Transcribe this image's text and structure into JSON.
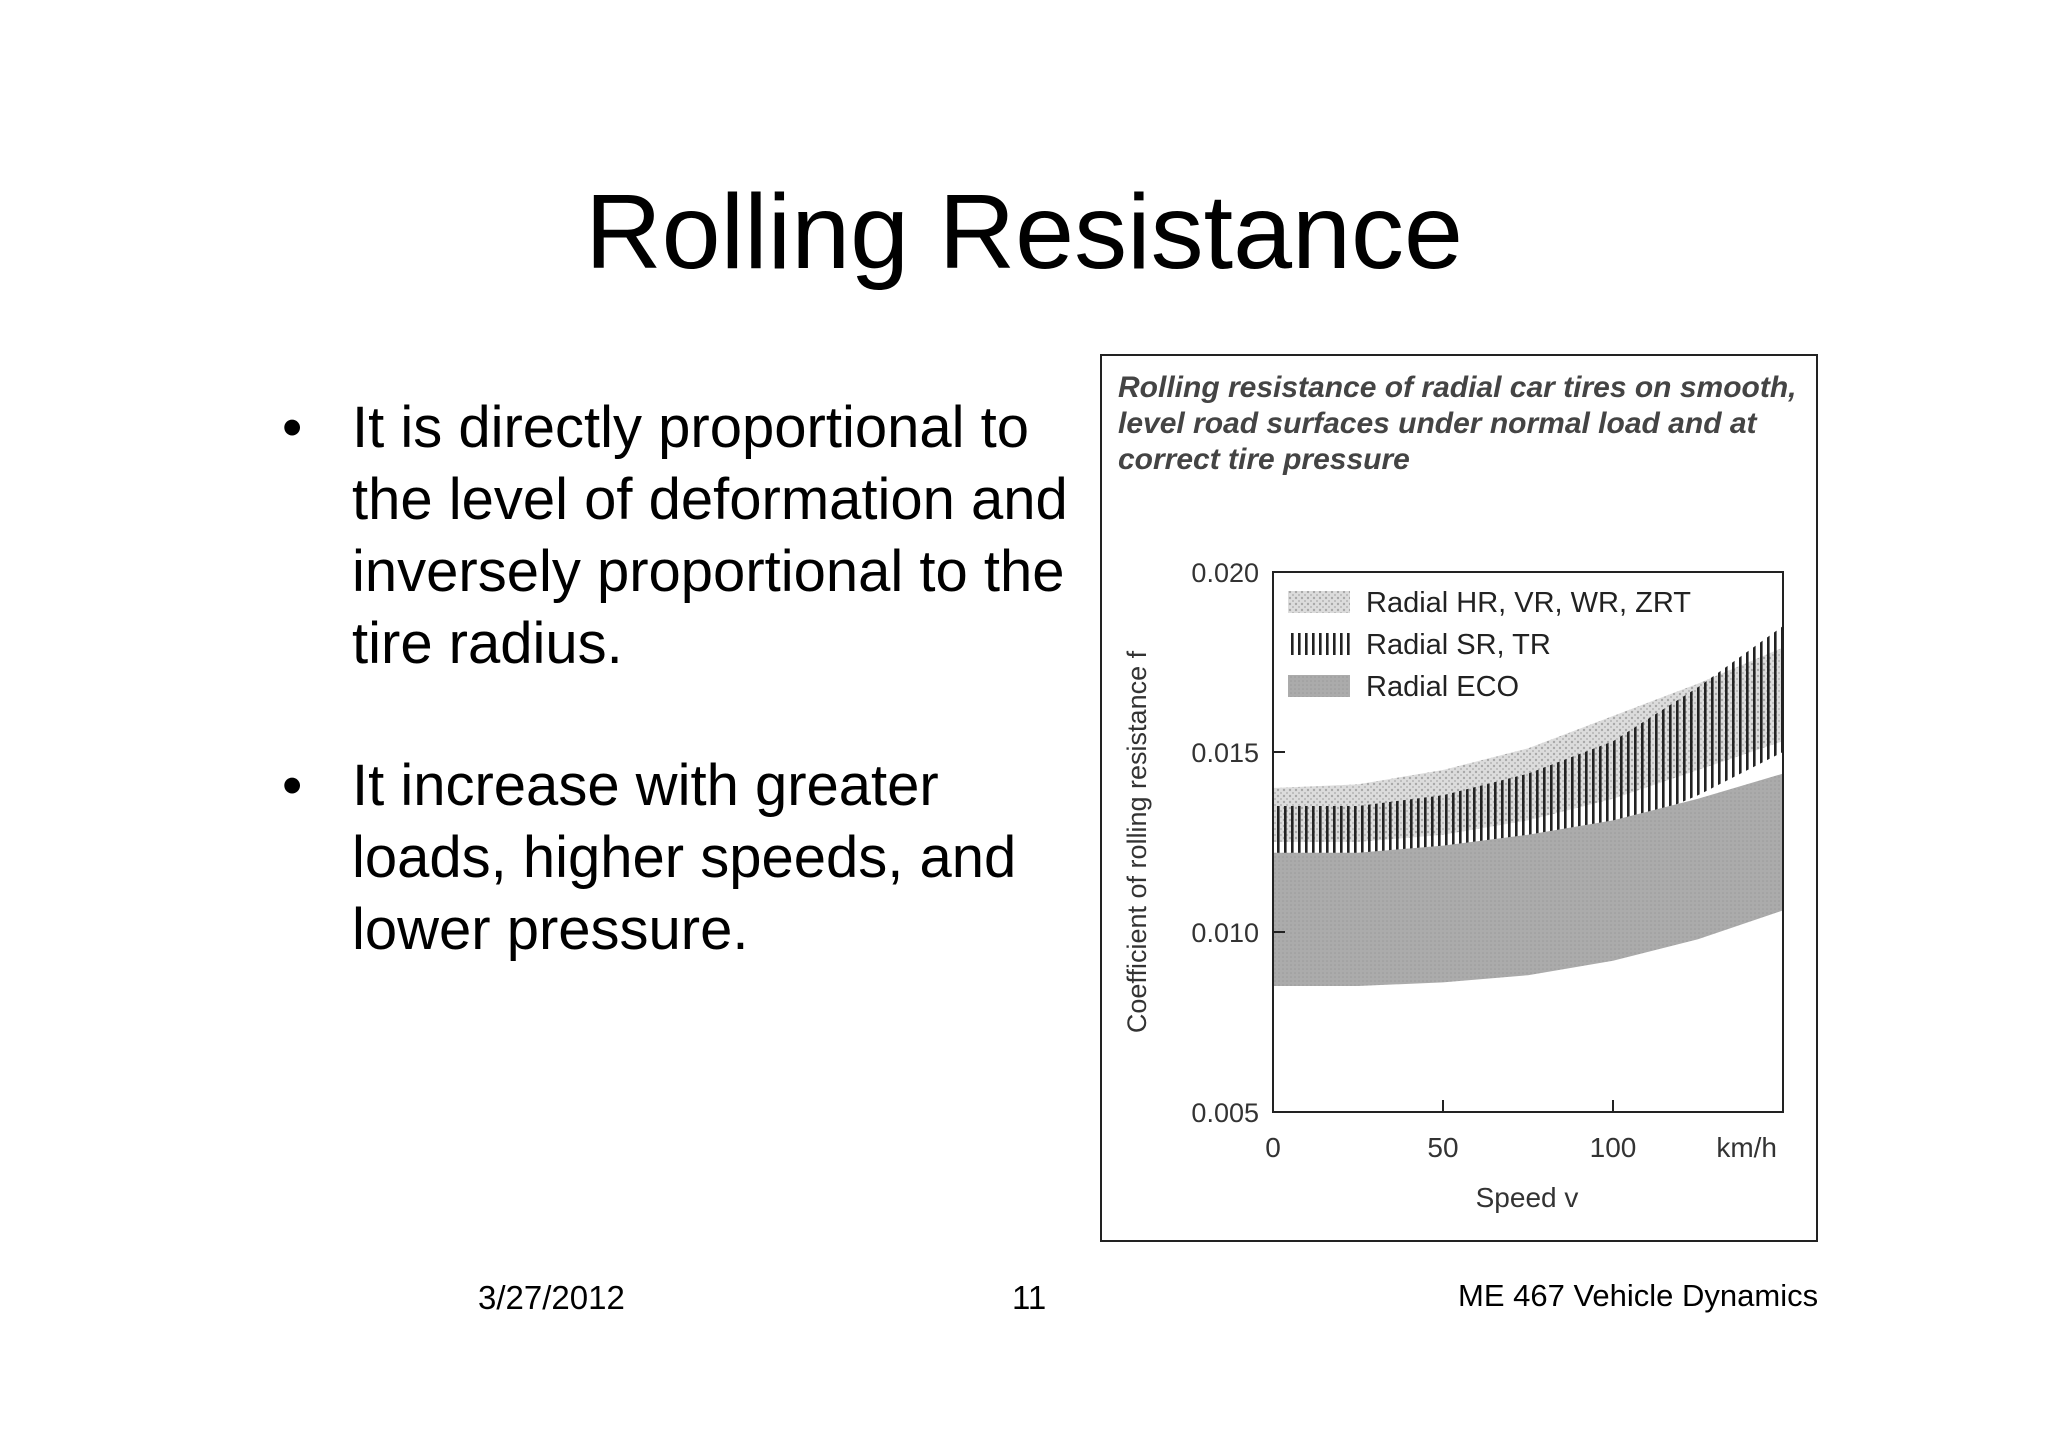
{
  "slide": {
    "title": "Rolling Resistance",
    "bullets": [
      "It is directly proportional to the level of deformation and inversely proportional to the tire radius.",
      "It increase with greater loads, higher speeds, and lower pressure."
    ],
    "bullet_symbol": "•"
  },
  "figure": {
    "caption": "Rolling resistance of radial car tires on smooth, level road surfaces under normal load and at correct tire pressure"
  },
  "chart_data": {
    "type": "area",
    "xlabel": "Speed v",
    "ylabel": "Coefficient of rolling resistance f",
    "x_unit": "km/h",
    "xlim": [
      0,
      150
    ],
    "ylim": [
      0.005,
      0.02
    ],
    "x_ticks": [
      "0",
      "50",
      "100"
    ],
    "y_ticks": [
      "0.005",
      "0.010",
      "0.015",
      "0.020"
    ],
    "legend_position": "top",
    "x": [
      0,
      25,
      50,
      75,
      100,
      125,
      150
    ],
    "series": [
      {
        "name": "Radial HR, VR, WR, ZRT",
        "pattern": "dotted",
        "color": "#c9c9c9",
        "lower": [
          0.0125,
          0.0125,
          0.0127,
          0.0131,
          0.0137,
          0.0145,
          0.0153
        ],
        "upper": [
          0.014,
          0.0141,
          0.0145,
          0.0151,
          0.016,
          0.0169,
          0.0179
        ]
      },
      {
        "name": "Radial SR, TR",
        "pattern": "vertical-lines",
        "color": "#333333",
        "lower": [
          0.0113,
          0.0113,
          0.0116,
          0.0121,
          0.0128,
          0.0138,
          0.015
        ],
        "upper": [
          0.0135,
          0.0135,
          0.0138,
          0.0144,
          0.0153,
          0.0168,
          0.0185
        ]
      },
      {
        "name": "Radial ECO",
        "pattern": "solid",
        "color": "#a9a9a9",
        "lower": [
          0.0085,
          0.0085,
          0.0086,
          0.0088,
          0.0092,
          0.0098,
          0.0106
        ],
        "upper": [
          0.0122,
          0.0122,
          0.0124,
          0.0127,
          0.0131,
          0.0137,
          0.0144
        ]
      }
    ]
  },
  "footer": {
    "date": "3/27/2012",
    "page": "11",
    "course": "ME 467  Vehicle Dynamics"
  }
}
